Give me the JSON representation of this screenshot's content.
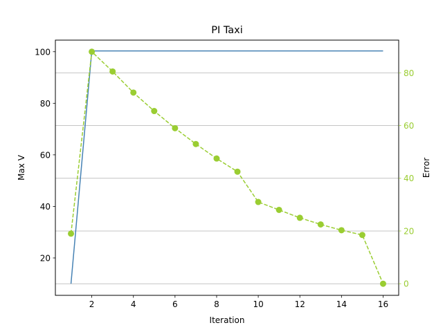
{
  "chart_data": {
    "type": "line",
    "title": "PI Taxi",
    "xlabel": "Iteration",
    "ylabel": "Max V",
    "y2label": "Error",
    "xlim": [
      0.25,
      16.75
    ],
    "ylim": [
      5.5,
      104.5
    ],
    "y2lim": [
      -4.4,
      92.4
    ],
    "xticks": [
      2,
      4,
      6,
      8,
      10,
      12,
      14,
      16
    ],
    "yticks": [
      20,
      40,
      60,
      80,
      100
    ],
    "y2ticks": [
      0,
      20,
      40,
      60,
      80
    ],
    "grid": "horizontal, right axis",
    "colors": {
      "maxv": "#4682b4",
      "error": "#9acd32"
    },
    "series": [
      {
        "name": "Max V",
        "axis": "left",
        "style": "solid",
        "x": [
          1,
          2,
          3,
          4,
          5,
          6,
          7,
          8,
          9,
          10,
          11,
          12,
          13,
          14,
          15,
          16
        ],
        "y": [
          10,
          100.3,
          100.3,
          100.3,
          100.3,
          100.3,
          100.3,
          100.3,
          100.3,
          100.3,
          100.3,
          100.3,
          100.3,
          100.3,
          100.3,
          100.3
        ]
      },
      {
        "name": "Error",
        "axis": "right",
        "style": "dashed",
        "marker": "circle",
        "x": [
          1,
          2,
          3,
          4,
          5,
          6,
          7,
          8,
          9,
          10,
          11,
          12,
          13,
          14,
          15,
          16
        ],
        "y": [
          19,
          88,
          80.5,
          72.5,
          65.5,
          59,
          53,
          47.5,
          42.5,
          31,
          28,
          25,
          22.5,
          20.3,
          18.5,
          0
        ]
      }
    ]
  }
}
